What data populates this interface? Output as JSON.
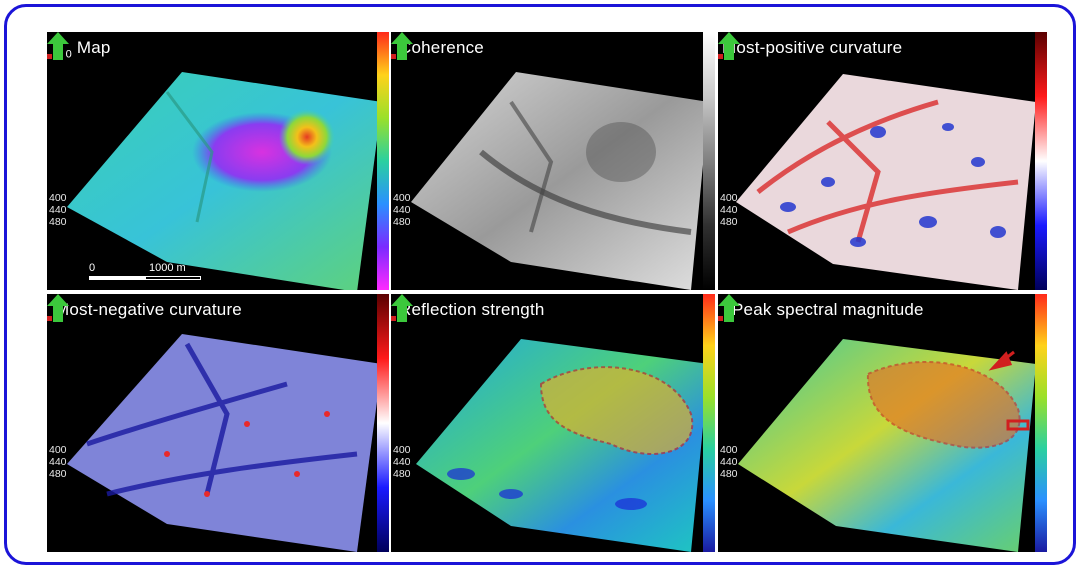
{
  "panels": [
    {
      "title": "T",
      "title_sub": "0",
      "title_rest": " Map",
      "colorbar": "rainbow-purple-bottom"
    },
    {
      "title": "Coherence",
      "colorbar": "gray"
    },
    {
      "title": "Most-positive curvature",
      "colorbar": "red-white-blue"
    },
    {
      "title": "Most-negative curvature",
      "colorbar": "red-white-blue"
    },
    {
      "title": "Reflection strength",
      "colorbar": "rainbow"
    },
    {
      "title": "Peak spectral magnitude",
      "colorbar": "rainbow"
    }
  ],
  "depth_ticks": [
    "400",
    "440",
    "480"
  ],
  "scale": {
    "start": "0",
    "end": "1000 m"
  },
  "colors": {
    "frame": "#1b14d8",
    "arrow": "#3cc83c",
    "highlight": "#d11f1f"
  }
}
